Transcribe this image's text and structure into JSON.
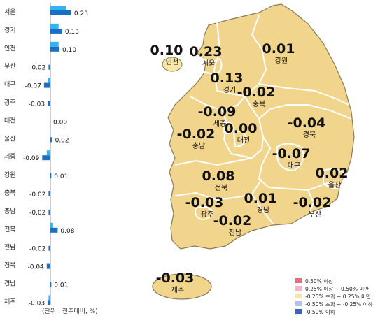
{
  "chart_data": [
    {
      "type": "bar",
      "categories": [
        "서울",
        "경기",
        "인천",
        "부산",
        "대구",
        "광주",
        "대전",
        "울산",
        "세종",
        "강원",
        "충북",
        "충남",
        "전북",
        "전남",
        "경북",
        "경남",
        "제주"
      ],
      "series": [
        {
          "values": [
            0.23,
            0.13,
            0.1,
            -0.02,
            -0.07,
            -0.03,
            0.0,
            0.02,
            -0.09,
            0.01,
            -0.02,
            -0.02,
            0.08,
            -0.02,
            -0.04,
            0.01,
            -0.03
          ]
        }
      ],
      "previous_values": [
        0.17,
        0.09,
        0.09,
        0.0,
        -0.03,
        0.0,
        0.0,
        0.0,
        -0.04,
        0.0,
        0.0,
        0.0,
        0.03,
        0.0,
        0.0,
        0.0,
        -0.02
      ],
      "value_labels": [
        "0.23",
        "0.13",
        "0.10",
        "-0.02",
        "-0.07",
        "-0.03",
        "0.00",
        "0.02",
        "-0.09",
        "0.01",
        "-0.02",
        "-0.02",
        "0.08",
        "-0.02",
        "-0.04",
        "0.01",
        "-0.03"
      ],
      "colors": {
        "current": "#1a6fc4",
        "previous": "#33b3f0"
      }
    },
    {
      "type": "map",
      "regions": [
        {
          "name": "서울",
          "value": "0.23"
        },
        {
          "name": "인천",
          "value": "0.10"
        },
        {
          "name": "강원",
          "value": "0.01"
        },
        {
          "name": "경기",
          "value": "0.13"
        },
        {
          "name": "충북",
          "value": "-0.02"
        },
        {
          "name": "세종",
          "value": "-0.09"
        },
        {
          "name": "대전",
          "value": "0.00"
        },
        {
          "name": "충남",
          "value": "-0.02"
        },
        {
          "name": "경북",
          "value": "-0.04"
        },
        {
          "name": "대구",
          "value": "-0.07"
        },
        {
          "name": "전북",
          "value": "0.08"
        },
        {
          "name": "울산",
          "value": "0.02"
        },
        {
          "name": "광주",
          "value": "-0.03"
        },
        {
          "name": "경남",
          "value": "0.01"
        },
        {
          "name": "부산",
          "value": "-0.02"
        },
        {
          "name": "전남",
          "value": "-0.02"
        },
        {
          "name": "제주",
          "value": "-0.03"
        }
      ],
      "legend": [
        {
          "label": "0.50% 이상",
          "color": "#e0707a"
        },
        {
          "label": "0.25% 이상 ~ 0.50% 미만",
          "color": "#f2b8c0"
        },
        {
          "label": "-0.25% 초과 ~ 0.25% 미만",
          "color": "#f6e7a6"
        },
        {
          "label": "-0.50% 초과 ~ -0.25% 이하",
          "color": "#b3c2e8"
        },
        {
          "label": "-0.50% 이하",
          "color": "#3d63b8"
        }
      ],
      "fill_color": "#f2d58c"
    }
  ],
  "unit_note": "(단위 : 전주대비, %)"
}
